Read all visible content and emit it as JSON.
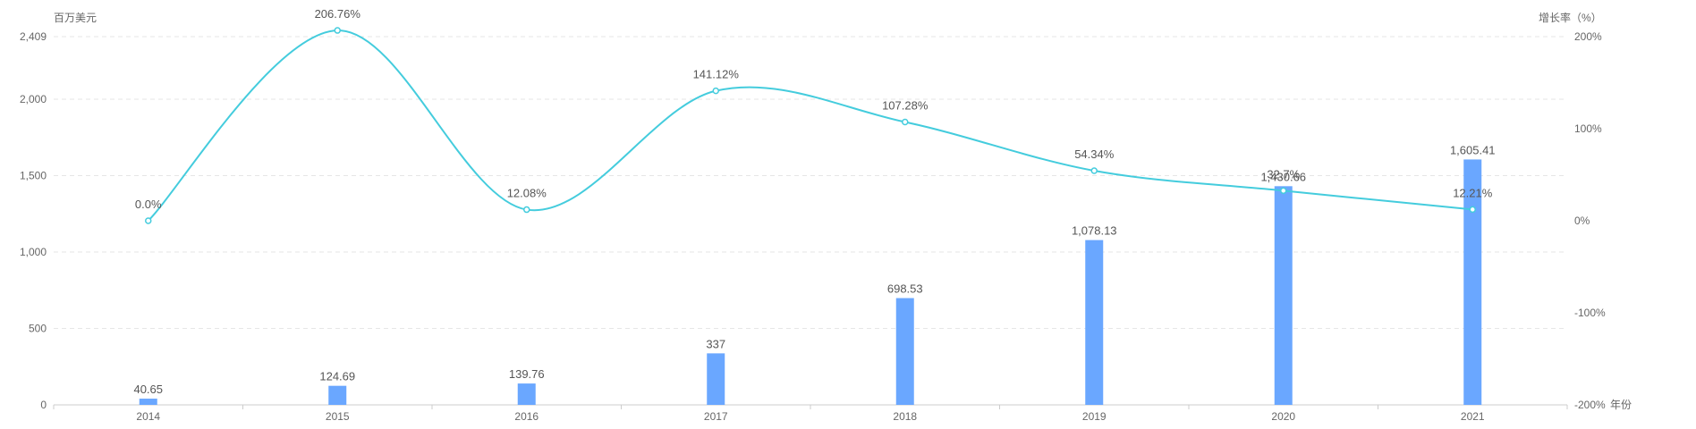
{
  "colors": {
    "bar": "#6aa7ff",
    "line": "#44ccdd",
    "grid": "#e6e6e6",
    "axis": "#cccccc",
    "text": "#666666"
  },
  "chart_data": {
    "type": "bar",
    "categories": [
      "2014",
      "2015",
      "2016",
      "2017",
      "2018",
      "2019",
      "2020",
      "2021"
    ],
    "series": [
      {
        "type": "bar",
        "axis": "left",
        "values": [
          40.65,
          124.69,
          139.76,
          337,
          698.53,
          1078.13,
          1430.66,
          1605.41
        ],
        "labels": [
          "40.65",
          "124.69",
          "139.76",
          "337",
          "698.53",
          "1,078.13",
          "1,430.66",
          "1,605.41"
        ]
      },
      {
        "type": "line",
        "axis": "right",
        "values": [
          0.0,
          206.76,
          12.08,
          141.12,
          107.28,
          54.34,
          32.7,
          12.21
        ],
        "labels": [
          "0.0%",
          "206.76%",
          "12.08%",
          "141.12%",
          "107.28%",
          "54.34%",
          "32.7%",
          "12.21%"
        ]
      }
    ],
    "left_axis": {
      "label": "百万美元",
      "min": 0,
      "max": 2409,
      "ticks": [
        0,
        500,
        1000,
        1500,
        2000,
        2409
      ],
      "tick_labels": [
        "0",
        "500",
        "1,000",
        "1,500",
        "2,000",
        "2,409"
      ]
    },
    "right_axis": {
      "label": "增长率（%）",
      "min": -200,
      "max": 200,
      "ticks": [
        -200,
        -100,
        0,
        100,
        200
      ],
      "tick_labels": [
        "-200%",
        "-100%",
        "0%",
        "100%",
        "200%"
      ]
    },
    "xlabel": "年份",
    "grid": true
  }
}
